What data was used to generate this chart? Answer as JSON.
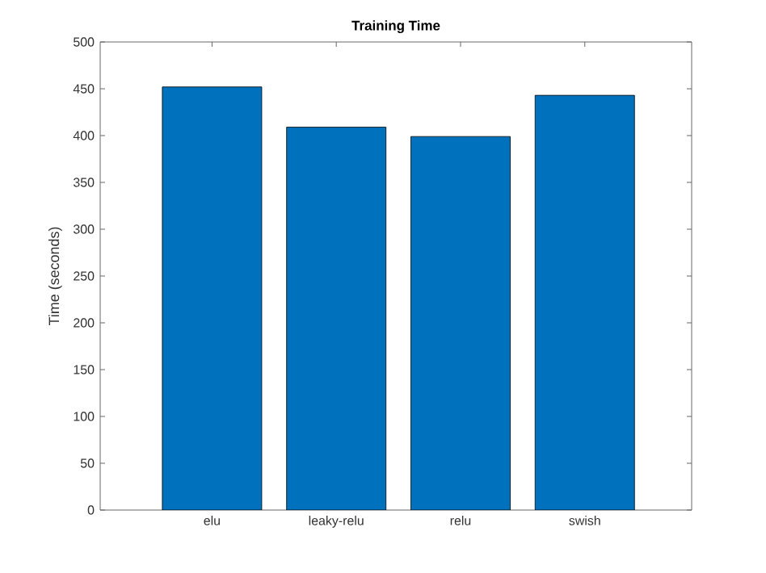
{
  "chart_data": {
    "type": "bar",
    "title": "Training Time",
    "ylabel": "Time (seconds)",
    "categories": [
      "elu",
      "leaky-relu",
      "relu",
      "swish"
    ],
    "values": [
      452,
      409,
      399,
      443
    ],
    "color": "#0072bd",
    "ylim": [
      0,
      500
    ],
    "yticks": [
      0,
      50,
      100,
      150,
      200,
      250,
      300,
      350,
      400,
      450,
      500
    ]
  }
}
